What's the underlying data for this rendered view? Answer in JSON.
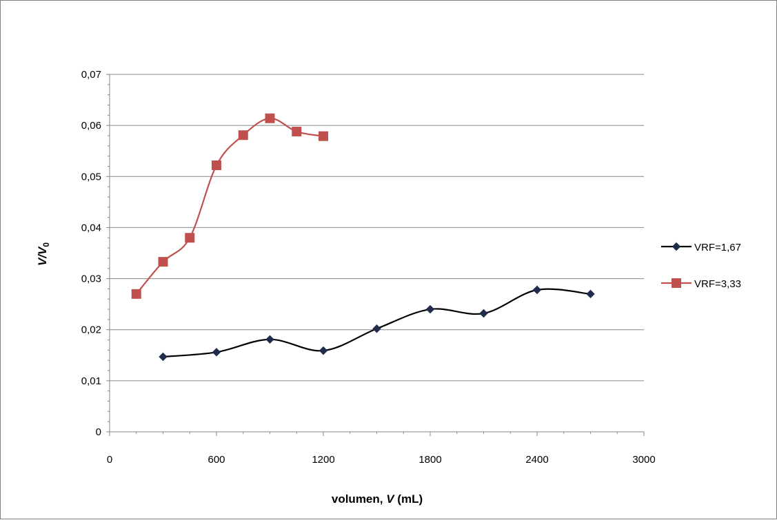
{
  "chart_data": {
    "type": "line",
    "title": "",
    "xlabel": "volumen, V (mL)",
    "xlabel_parts": {
      "prefix": "volumen, ",
      "var": "V",
      "suffix": " (mL)"
    },
    "ylabel": "V/V0",
    "ylabel_parts": {
      "var": "V/V",
      "sub": "0"
    },
    "xlim": [
      0,
      3000
    ],
    "ylim": [
      0,
      0.07
    ],
    "xticks": [
      0,
      600,
      1200,
      1800,
      2400,
      3000
    ],
    "xtick_labels": [
      "0",
      "600",
      "1200",
      "1800",
      "2400",
      "3000"
    ],
    "yticks": [
      0,
      0.01,
      0.02,
      0.03,
      0.04,
      0.05,
      0.06,
      0.07
    ],
    "ytick_labels": [
      "0",
      "0,01",
      "0,02",
      "0,03",
      "0,04",
      "0,05",
      "0,06",
      "0,07"
    ],
    "grid": "horizontal",
    "legend_position": "right",
    "series": [
      {
        "name": "VRF=1,67",
        "color": "#000000",
        "marker_color": "#1f2d4a",
        "marker": "diamond",
        "x": [
          300,
          600,
          900,
          1200,
          1500,
          1800,
          2100,
          2400,
          2700
        ],
        "y": [
          0.0147,
          0.0156,
          0.0181,
          0.0159,
          0.0202,
          0.024,
          0.0232,
          0.0278,
          0.027
        ]
      },
      {
        "name": "VRF=3,33",
        "color": "#c0504d",
        "marker_color": "#c0504d",
        "marker": "square",
        "x": [
          150,
          300,
          450,
          600,
          750,
          900,
          1050,
          1200
        ],
        "y": [
          0.027,
          0.0333,
          0.038,
          0.0522,
          0.0581,
          0.0614,
          0.0588,
          0.0579
        ]
      }
    ]
  }
}
